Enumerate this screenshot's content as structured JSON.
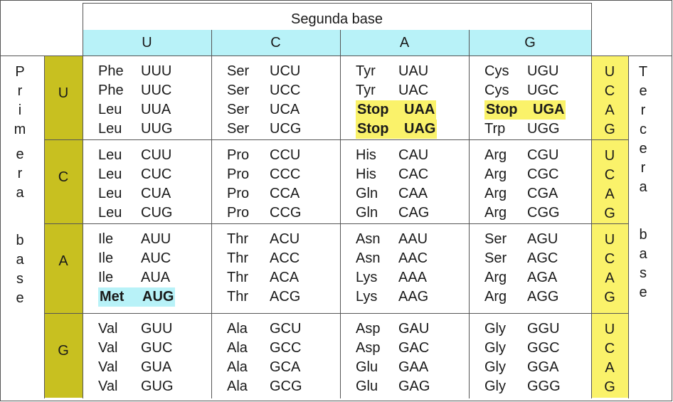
{
  "title": "Segunda base",
  "second_bases": [
    "U",
    "C",
    "A",
    "G"
  ],
  "first_label": [
    "P",
    "r",
    "i",
    "m",
    "e",
    "r",
    "a",
    "b",
    "a",
    "s",
    "e"
  ],
  "third_label": [
    "T",
    "e",
    "r",
    "c",
    "e",
    "r",
    "a",
    "b",
    "a",
    "s",
    "e"
  ],
  "first_bases": [
    "U",
    "C",
    "A",
    "G"
  ],
  "third_bases": [
    "U",
    "C",
    "A",
    "G"
  ],
  "rows": [
    [
      [
        [
          "Phe",
          "UUU"
        ],
        [
          "Phe",
          "UUC"
        ],
        [
          "Leu",
          "UUA"
        ],
        [
          "Leu",
          "UUG"
        ]
      ],
      [
        [
          "Ser",
          "UCU"
        ],
        [
          "Ser",
          "UCC"
        ],
        [
          "Ser",
          "UCA"
        ],
        [
          "Ser",
          "UCG"
        ]
      ],
      [
        [
          "Tyr",
          "UAU"
        ],
        [
          "Tyr",
          "UAC"
        ],
        [
          "Stop",
          "UAA"
        ],
        [
          "Stop",
          "UAG"
        ]
      ],
      [
        [
          "Cys",
          "UGU"
        ],
        [
          "Cys",
          "UGC"
        ],
        [
          "Stop",
          "UGA"
        ],
        [
          "Trp",
          "UGG"
        ]
      ]
    ],
    [
      [
        [
          "Leu",
          "CUU"
        ],
        [
          "Leu",
          "CUC"
        ],
        [
          "Leu",
          "CUA"
        ],
        [
          "Leu",
          "CUG"
        ]
      ],
      [
        [
          "Pro",
          "CCU"
        ],
        [
          "Pro",
          "CCC"
        ],
        [
          "Pro",
          "CCA"
        ],
        [
          "Pro",
          "CCG"
        ]
      ],
      [
        [
          "His",
          "CAU"
        ],
        [
          "His",
          "CAC"
        ],
        [
          "Gln",
          "CAA"
        ],
        [
          "Gln",
          "CAG"
        ]
      ],
      [
        [
          "Arg",
          "CGU"
        ],
        [
          "Arg",
          "CGC"
        ],
        [
          "Arg",
          "CGA"
        ],
        [
          "Arg",
          "CGG"
        ]
      ]
    ],
    [
      [
        [
          "Ile",
          "AUU"
        ],
        [
          "Ile",
          "AUC"
        ],
        [
          "Ile",
          "AUA"
        ],
        [
          "Met",
          "AUG"
        ]
      ],
      [
        [
          "Thr",
          "ACU"
        ],
        [
          "Thr",
          "ACC"
        ],
        [
          "Thr",
          "ACA"
        ],
        [
          "Thr",
          "ACG"
        ]
      ],
      [
        [
          "Asn",
          "AAU"
        ],
        [
          "Asn",
          "AAC"
        ],
        [
          "Lys",
          "AAA"
        ],
        [
          "Lys",
          "AAG"
        ]
      ],
      [
        [
          "Ser",
          "AGU"
        ],
        [
          "Ser",
          "AGC"
        ],
        [
          "Arg",
          "AGA"
        ],
        [
          "Arg",
          "AGG"
        ]
      ]
    ],
    [
      [
        [
          "Val",
          "GUU"
        ],
        [
          "Val",
          "GUC"
        ],
        [
          "Val",
          "GUA"
        ],
        [
          "Val",
          "GUG"
        ]
      ],
      [
        [
          "Ala",
          "GCU"
        ],
        [
          "Ala",
          "GCC"
        ],
        [
          "Ala",
          "GCA"
        ],
        [
          "Ala",
          "GCG"
        ]
      ],
      [
        [
          "Asp",
          "GAU"
        ],
        [
          "Asp",
          "GAC"
        ],
        [
          "Glu",
          "GAA"
        ],
        [
          "Glu",
          "GAG"
        ]
      ],
      [
        [
          "Gly",
          "GGU"
        ],
        [
          "Gly",
          "GGC"
        ],
        [
          "Gly",
          "GGA"
        ],
        [
          "Gly",
          "GGG"
        ]
      ]
    ]
  ],
  "colors": {
    "header_cyan": "#b8f2f8",
    "first_base_olive": "#c8c020",
    "third_base_yellow": "#faf26a",
    "stop_highlight": "#faf26a",
    "start_highlight": "#b8f2f8"
  }
}
